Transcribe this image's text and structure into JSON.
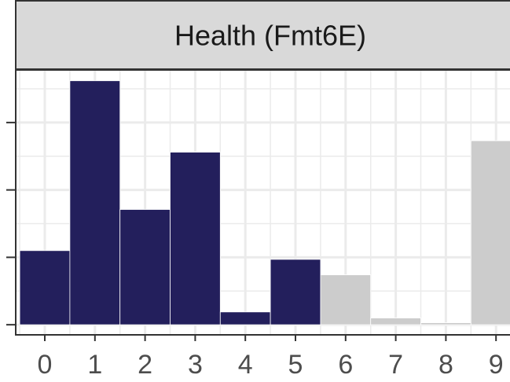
{
  "chart_data": {
    "type": "bar",
    "title": "Health (Fmt6E)",
    "categories": [
      "0",
      "1",
      "2",
      "3",
      "4",
      "5",
      "6",
      "7",
      "8",
      "9"
    ],
    "values": [
      1.1,
      3.62,
      1.71,
      2.56,
      0.19,
      0.97,
      0.74,
      0.1,
      0.03,
      2.73
    ],
    "colors": [
      "#231f5c",
      "#231f5c",
      "#231f5c",
      "#231f5c",
      "#231f5c",
      "#231f5c",
      "#cccccc",
      "#cccccc",
      "#cccccc",
      "#cccccc"
    ],
    "ylim": [
      -0.15,
      3.78
    ],
    "yticks": [
      0,
      1,
      2,
      3
    ],
    "grid": true
  }
}
